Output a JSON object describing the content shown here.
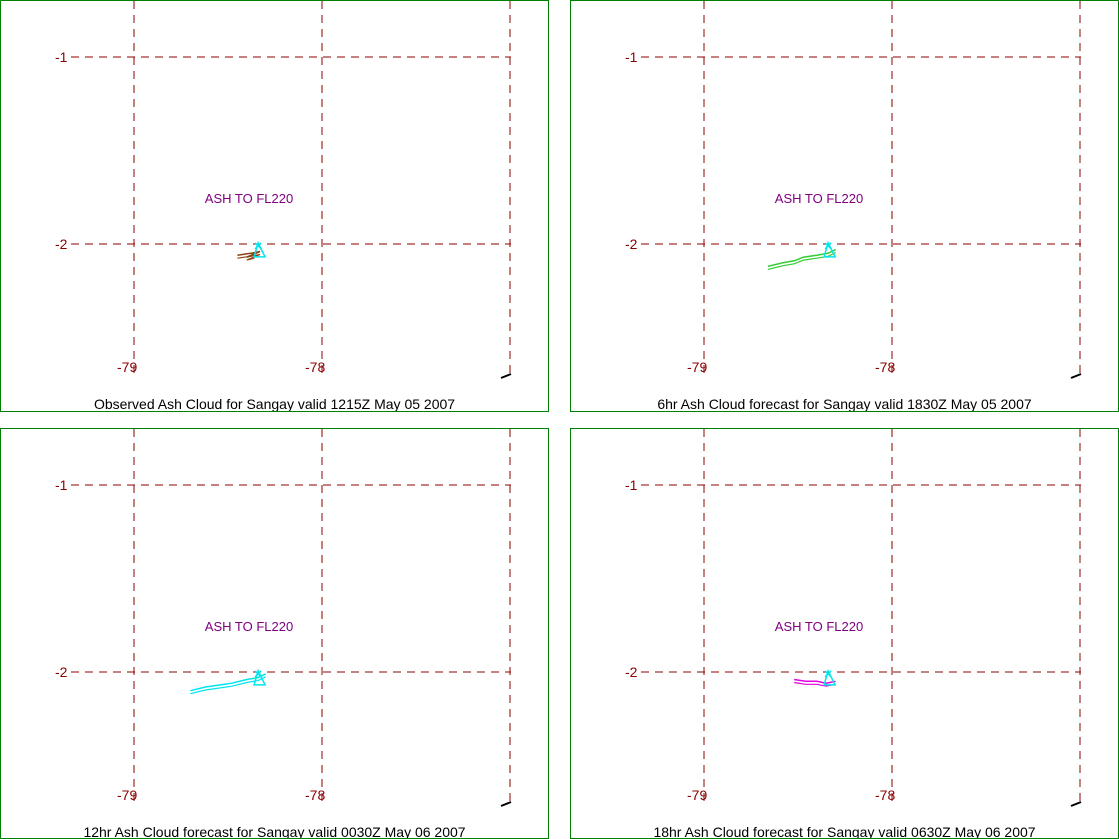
{
  "colors": {
    "border": "#008000",
    "grid": "#8b0000",
    "label": "#800080",
    "observed": "#8b4513",
    "forecast6": "#32cd32",
    "forecast12": "#00e5ee",
    "forecast18": "#e000e0",
    "volcano": "#00e5ee"
  },
  "grid_labels": {
    "lat_1": "-1",
    "lat_2": "-2",
    "lon_79": "-79",
    "lon_78": "-78"
  },
  "panels": [
    {
      "caption": "Observed Ash Cloud for Sangay valid 1215Z May 05 2007",
      "label": "ASH TO FL220",
      "cloud_color_key": "observed",
      "cloud": [
        [
          -78.45,
          -2.06
        ],
        [
          -78.38,
          -2.05
        ],
        [
          -78.33,
          -2.04
        ],
        [
          -78.4,
          -2.07
        ],
        [
          -78.36,
          -2.06
        ]
      ]
    },
    {
      "caption": "6hr Ash Cloud forecast for Sangay valid 1830Z May 05 2007",
      "label": "ASH TO FL220",
      "cloud_color_key": "forecast6",
      "cloud": [
        [
          -78.66,
          -2.12
        ],
        [
          -78.58,
          -2.1
        ],
        [
          -78.52,
          -2.09
        ],
        [
          -78.47,
          -2.07
        ],
        [
          -78.4,
          -2.06
        ],
        [
          -78.34,
          -2.05
        ],
        [
          -78.3,
          -2.03
        ]
      ]
    },
    {
      "caption": "12hr Ash Cloud forecast for Sangay valid 0030Z May 06 2007",
      "label": "ASH TO FL220",
      "cloud_color_key": "forecast12",
      "cloud": [
        [
          -78.7,
          -2.1
        ],
        [
          -78.62,
          -2.08
        ],
        [
          -78.55,
          -2.07
        ],
        [
          -78.48,
          -2.06
        ],
        [
          -78.4,
          -2.04
        ],
        [
          -78.34,
          -2.03
        ],
        [
          -78.3,
          -2.01
        ]
      ]
    },
    {
      "caption": "18hr Ash Cloud forecast for Sangay valid 0630Z May 06 2007",
      "label": "ASH TO FL220",
      "cloud_color_key": "forecast18",
      "cloud": [
        [
          -78.52,
          -2.04
        ],
        [
          -78.46,
          -2.05
        ],
        [
          -78.4,
          -2.05
        ],
        [
          -78.35,
          -2.06
        ],
        [
          -78.3,
          -2.05
        ]
      ]
    }
  ]
}
